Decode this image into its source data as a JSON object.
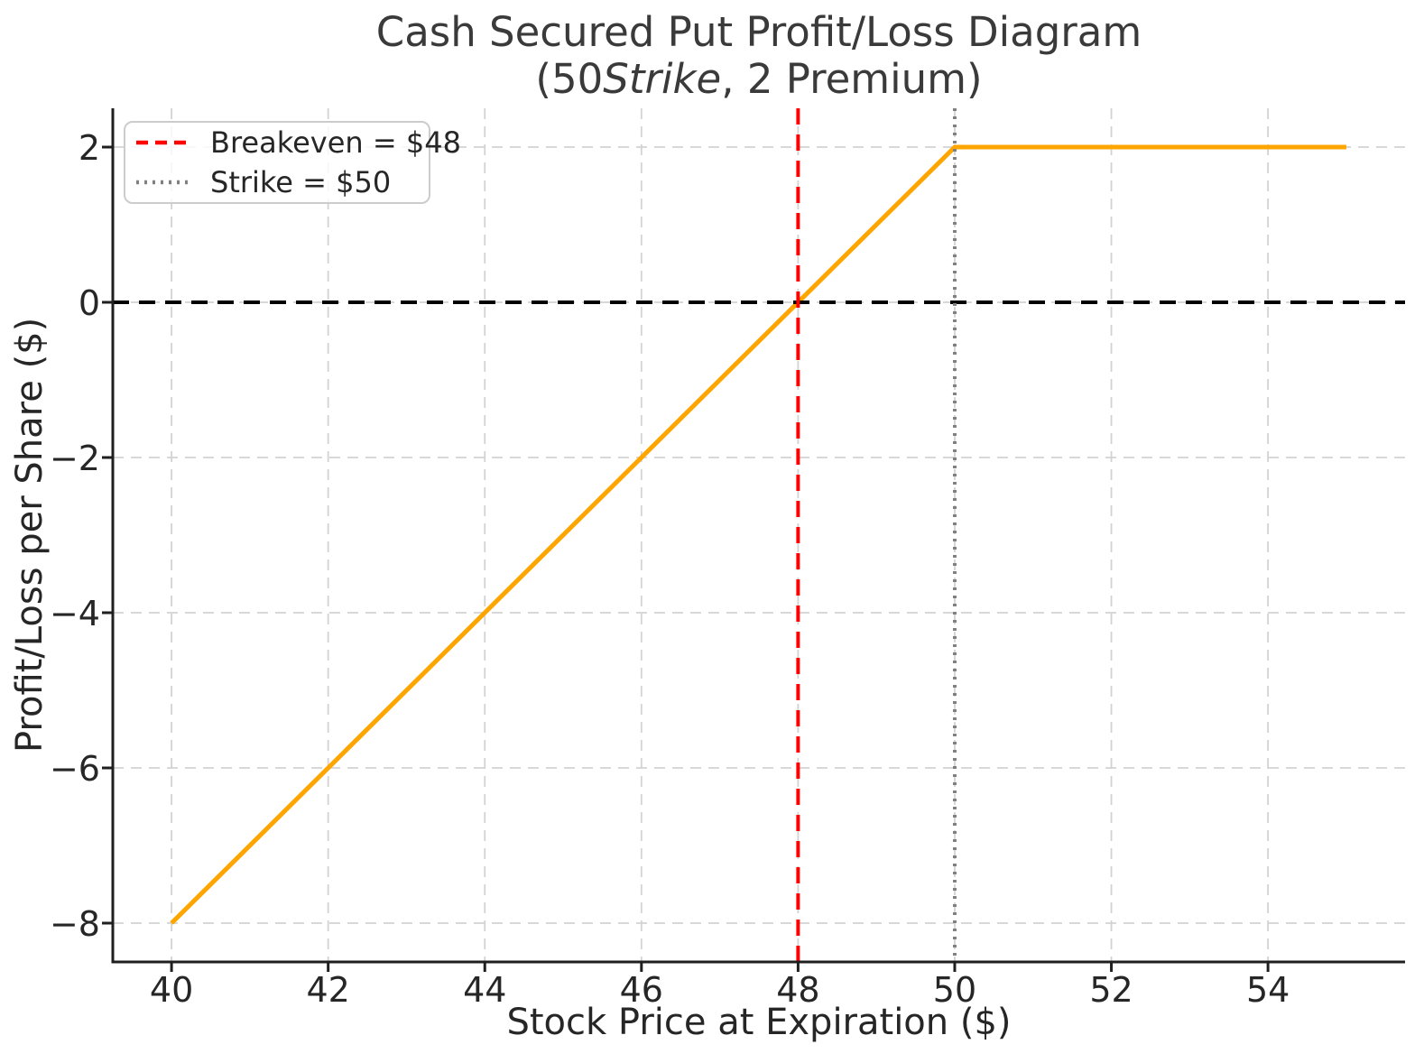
{
  "chart_data": {
    "type": "line",
    "title_line1": "Cash Secured Put Profit/Loss Diagram",
    "title_line2_prefix": "(50",
    "title_line2_italic": "Strike",
    "title_line2_suffix": ", 2 Premium)",
    "xlabel": "Stock Price at Expiration ($)",
    "ylabel": "Profit/Loss per Share ($)",
    "xlim": [
      39.25,
      55.75
    ],
    "ylim": [
      -8.5,
      2.5
    ],
    "grid": true,
    "x_ticks": [
      {
        "value": 40,
        "label": "40"
      },
      {
        "value": 42,
        "label": "42"
      },
      {
        "value": 44,
        "label": "44"
      },
      {
        "value": 46,
        "label": "46"
      },
      {
        "value": 48,
        "label": "48"
      },
      {
        "value": 50,
        "label": "50"
      },
      {
        "value": 52,
        "label": "52"
      },
      {
        "value": 54,
        "label": "54"
      }
    ],
    "y_ticks": [
      {
        "value": 2,
        "label": "2"
      },
      {
        "value": 0,
        "label": "0"
      },
      {
        "value": -2,
        "label": "−2"
      },
      {
        "value": -4,
        "label": "−4"
      },
      {
        "value": -6,
        "label": "−6"
      },
      {
        "value": -8,
        "label": "−8"
      }
    ],
    "series": [
      {
        "name": "cash-secured-put-payoff",
        "color": "#FFA500",
        "points": [
          [
            40,
            -8
          ],
          [
            50,
            2
          ],
          [
            55,
            2
          ]
        ]
      }
    ],
    "reference_lines": [
      {
        "name": "zero-line",
        "axis": "y",
        "value": 0,
        "color": "#000000",
        "style": "dashed"
      },
      {
        "name": "breakeven-line",
        "axis": "x",
        "value": 48,
        "color": "#FF0000",
        "style": "dashed"
      },
      {
        "name": "strike-line",
        "axis": "x",
        "value": 50,
        "color": "#808080",
        "style": "dotted"
      }
    ],
    "legend": {
      "position": "upper-left",
      "items": [
        {
          "label": "Breakeven = $48",
          "color": "#FF0000",
          "style": "dashed"
        },
        {
          "label": "Strike = $50",
          "color": "#808080",
          "style": "dotted"
        }
      ]
    },
    "colors": {
      "grid": "#D3D3D3",
      "spine": "#1F1F1F",
      "text": "#262626",
      "title": "#3A3A3A"
    }
  }
}
